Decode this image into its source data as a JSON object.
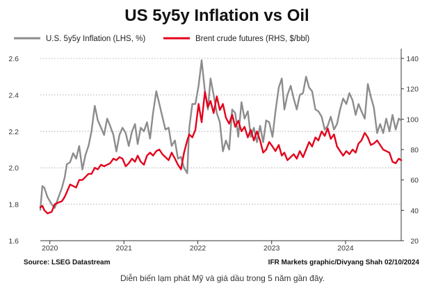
{
  "caption": "Diễn biến lạm phát Mỹ và giá dầu trong 5 năm gần đây.",
  "footer": {
    "source": "Source: LSEG Datastream",
    "credit": "IFR Markets graphic/Divyang Shah 02/10/2024"
  },
  "chart_data": {
    "type": "line",
    "title": "US 5y5y Inflation vs Oil",
    "legend_position": "top",
    "grid": "horizontal dotted",
    "x_axis": {
      "range": [
        "2019-11-15",
        "2024-10-02"
      ],
      "tick_labels": [
        "2020",
        "2021",
        "2022",
        "2023",
        "2024"
      ],
      "tick_dates": [
        "2020-01-01",
        "2021-01-01",
        "2022-01-01",
        "2023-01-01",
        "2024-01-01"
      ]
    },
    "y_left": {
      "range": [
        1.6,
        2.6
      ],
      "ticks": [
        1.6,
        1.8,
        2.0,
        2.2,
        2.4,
        2.6
      ],
      "tick_labels": [
        "1.6",
        "1.8",
        "2.0",
        "2.2",
        "2.4",
        "2.6"
      ]
    },
    "y_right": {
      "range": [
        20,
        140
      ],
      "ticks": [
        20,
        40,
        60,
        80,
        100,
        120,
        140
      ],
      "tick_labels": [
        "20",
        "40",
        "60",
        "80",
        "100",
        "120",
        "140"
      ]
    },
    "series": [
      {
        "name": "U.S. 5y5y Inflation (LHS, %)",
        "axis": "left",
        "color": "#8c8c8c",
        "points": [
          [
            "2019-11-15",
            1.77
          ],
          [
            "2019-11-25",
            1.9
          ],
          [
            "2019-12-05",
            1.89
          ],
          [
            "2019-12-20",
            1.84
          ],
          [
            "2020-01-10",
            1.8
          ],
          [
            "2020-01-25",
            1.78
          ],
          [
            "2020-02-10",
            1.83
          ],
          [
            "2020-03-01",
            1.89
          ],
          [
            "2020-03-15",
            1.95
          ],
          [
            "2020-03-25",
            2.02
          ],
          [
            "2020-04-10",
            2.03
          ],
          [
            "2020-04-25",
            2.08
          ],
          [
            "2020-05-10",
            2.05
          ],
          [
            "2020-05-25",
            2.12
          ],
          [
            "2020-06-10",
            1.99
          ],
          [
            "2020-06-25",
            2.07
          ],
          [
            "2020-07-10",
            2.12
          ],
          [
            "2020-07-25",
            2.2
          ],
          [
            "2020-08-10",
            2.34
          ],
          [
            "2020-08-25",
            2.26
          ],
          [
            "2020-09-10",
            2.22
          ],
          [
            "2020-09-25",
            2.18
          ],
          [
            "2020-10-10",
            2.27
          ],
          [
            "2020-10-25",
            2.23
          ],
          [
            "2020-11-10",
            2.18
          ],
          [
            "2020-11-25",
            2.09
          ],
          [
            "2020-12-10",
            2.18
          ],
          [
            "2020-12-25",
            2.22
          ],
          [
            "2021-01-10",
            2.19
          ],
          [
            "2021-01-25",
            2.12
          ],
          [
            "2021-02-10",
            2.2
          ],
          [
            "2021-02-25",
            2.24
          ],
          [
            "2021-03-10",
            2.13
          ],
          [
            "2021-03-25",
            2.22
          ],
          [
            "2021-04-10",
            2.2
          ],
          [
            "2021-04-25",
            2.25
          ],
          [
            "2021-05-10",
            2.16
          ],
          [
            "2021-05-25",
            2.3
          ],
          [
            "2021-06-10",
            2.42
          ],
          [
            "2021-06-25",
            2.35
          ],
          [
            "2021-07-10",
            2.28
          ],
          [
            "2021-07-25",
            2.21
          ],
          [
            "2021-08-10",
            2.22
          ],
          [
            "2021-08-25",
            2.12
          ],
          [
            "2021-09-10",
            2.15
          ],
          [
            "2021-09-25",
            2.05
          ],
          [
            "2021-10-10",
            2.06
          ],
          [
            "2021-10-25",
            2.0
          ],
          [
            "2021-11-10",
            1.97
          ],
          [
            "2021-11-20",
            2.22
          ],
          [
            "2021-12-05",
            2.35
          ],
          [
            "2021-12-20",
            2.35
          ],
          [
            "2022-01-05",
            2.45
          ],
          [
            "2022-01-20",
            2.59
          ],
          [
            "2022-02-05",
            2.42
          ],
          [
            "2022-02-20",
            2.32
          ],
          [
            "2022-03-05",
            2.49
          ],
          [
            "2022-03-20",
            2.4
          ],
          [
            "2022-04-05",
            2.3
          ],
          [
            "2022-04-20",
            2.25
          ],
          [
            "2022-05-05",
            2.09
          ],
          [
            "2022-05-20",
            2.15
          ],
          [
            "2022-06-05",
            2.1
          ],
          [
            "2022-06-20",
            2.32
          ],
          [
            "2022-07-05",
            2.3
          ],
          [
            "2022-07-20",
            2.17
          ],
          [
            "2022-08-05",
            2.36
          ],
          [
            "2022-08-20",
            2.27
          ],
          [
            "2022-09-05",
            2.31
          ],
          [
            "2022-09-20",
            2.17
          ],
          [
            "2022-10-05",
            2.22
          ],
          [
            "2022-10-20",
            2.14
          ],
          [
            "2022-11-05",
            2.23
          ],
          [
            "2022-11-20",
            2.14
          ],
          [
            "2022-12-05",
            2.26
          ],
          [
            "2022-12-20",
            2.25
          ],
          [
            "2023-01-05",
            2.17
          ],
          [
            "2023-01-20",
            2.31
          ],
          [
            "2023-02-05",
            2.44
          ],
          [
            "2023-02-20",
            2.49
          ],
          [
            "2023-03-05",
            2.32
          ],
          [
            "2023-03-20",
            2.4
          ],
          [
            "2023-04-05",
            2.45
          ],
          [
            "2023-04-20",
            2.38
          ],
          [
            "2023-05-05",
            2.32
          ],
          [
            "2023-05-20",
            2.4
          ],
          [
            "2023-06-05",
            2.41
          ],
          [
            "2023-06-20",
            2.5
          ],
          [
            "2023-07-05",
            2.44
          ],
          [
            "2023-07-20",
            2.42
          ],
          [
            "2023-08-05",
            2.32
          ],
          [
            "2023-08-20",
            2.31
          ],
          [
            "2023-09-05",
            2.28
          ],
          [
            "2023-09-20",
            2.21
          ],
          [
            "2023-10-05",
            2.23
          ],
          [
            "2023-10-20",
            2.28
          ],
          [
            "2023-11-05",
            2.21
          ],
          [
            "2023-11-20",
            2.24
          ],
          [
            "2023-12-05",
            2.32
          ],
          [
            "2023-12-20",
            2.38
          ],
          [
            "2024-01-05",
            2.35
          ],
          [
            "2024-01-20",
            2.41
          ],
          [
            "2024-02-05",
            2.37
          ],
          [
            "2024-02-20",
            2.29
          ],
          [
            "2024-03-05",
            2.35
          ],
          [
            "2024-03-20",
            2.31
          ],
          [
            "2024-04-05",
            2.27
          ],
          [
            "2024-04-20",
            2.46
          ],
          [
            "2024-05-05",
            2.39
          ],
          [
            "2024-05-20",
            2.33
          ],
          [
            "2024-06-05",
            2.19
          ],
          [
            "2024-06-20",
            2.24
          ],
          [
            "2024-07-05",
            2.19
          ],
          [
            "2024-07-20",
            2.27
          ],
          [
            "2024-08-05",
            2.2
          ],
          [
            "2024-08-20",
            2.29
          ],
          [
            "2024-09-05",
            2.21
          ],
          [
            "2024-09-20",
            2.27
          ],
          [
            "2024-10-02",
            2.26
          ]
        ]
      },
      {
        "name": "Brent crude futures (RHS, $/bbl)",
        "axis": "right",
        "color": "#e3001b",
        "points": [
          [
            "2019-11-15",
            42
          ],
          [
            "2019-11-25",
            43
          ],
          [
            "2019-12-05",
            40
          ],
          [
            "2019-12-20",
            38
          ],
          [
            "2020-01-10",
            39
          ],
          [
            "2020-01-25",
            44
          ],
          [
            "2020-02-10",
            45
          ],
          [
            "2020-03-01",
            46
          ],
          [
            "2020-03-15",
            49
          ],
          [
            "2020-03-25",
            52
          ],
          [
            "2020-04-10",
            57
          ],
          [
            "2020-04-25",
            56
          ],
          [
            "2020-05-10",
            55
          ],
          [
            "2020-05-25",
            60
          ],
          [
            "2020-06-10",
            60
          ],
          [
            "2020-06-25",
            62
          ],
          [
            "2020-07-10",
            64
          ],
          [
            "2020-07-25",
            64
          ],
          [
            "2020-08-10",
            68
          ],
          [
            "2020-08-25",
            67
          ],
          [
            "2020-09-10",
            70
          ],
          [
            "2020-09-25",
            69
          ],
          [
            "2020-10-10",
            70
          ],
          [
            "2020-10-25",
            71
          ],
          [
            "2020-11-10",
            74
          ],
          [
            "2020-11-25",
            73
          ],
          [
            "2020-12-10",
            75
          ],
          [
            "2020-12-25",
            74
          ],
          [
            "2021-01-10",
            69
          ],
          [
            "2021-01-25",
            71
          ],
          [
            "2021-02-10",
            74
          ],
          [
            "2021-02-25",
            72
          ],
          [
            "2021-03-10",
            76
          ],
          [
            "2021-03-25",
            72
          ],
          [
            "2021-04-10",
            70
          ],
          [
            "2021-04-25",
            76
          ],
          [
            "2021-05-10",
            78
          ],
          [
            "2021-05-25",
            76
          ],
          [
            "2021-06-10",
            79
          ],
          [
            "2021-06-25",
            80
          ],
          [
            "2021-07-10",
            77
          ],
          [
            "2021-07-25",
            75
          ],
          [
            "2021-08-10",
            73
          ],
          [
            "2021-08-25",
            78
          ],
          [
            "2021-09-10",
            74
          ],
          [
            "2021-09-25",
            70
          ],
          [
            "2021-10-10",
            67
          ],
          [
            "2021-10-25",
            78
          ],
          [
            "2021-11-10",
            86
          ],
          [
            "2021-11-20",
            90
          ],
          [
            "2021-12-05",
            88
          ],
          [
            "2021-12-20",
            93
          ],
          [
            "2022-01-05",
            110
          ],
          [
            "2022-01-20",
            98
          ],
          [
            "2022-02-05",
            118
          ],
          [
            "2022-02-20",
            108
          ],
          [
            "2022-03-05",
            112
          ],
          [
            "2022-03-20",
            104
          ],
          [
            "2022-04-05",
            115
          ],
          [
            "2022-04-20",
            106
          ],
          [
            "2022-05-05",
            110
          ],
          [
            "2022-05-20",
            101
          ],
          [
            "2022-06-05",
            97
          ],
          [
            "2022-06-20",
            103
          ],
          [
            "2022-07-05",
            95
          ],
          [
            "2022-07-20",
            99
          ],
          [
            "2022-08-05",
            92
          ],
          [
            "2022-08-20",
            95
          ],
          [
            "2022-09-05",
            88
          ],
          [
            "2022-09-20",
            93
          ],
          [
            "2022-10-05",
            86
          ],
          [
            "2022-10-20",
            92
          ],
          [
            "2022-11-05",
            86
          ],
          [
            "2022-11-20",
            78
          ],
          [
            "2022-12-05",
            80
          ],
          [
            "2022-12-20",
            85
          ],
          [
            "2023-01-05",
            82
          ],
          [
            "2023-01-20",
            79
          ],
          [
            "2023-02-05",
            83
          ],
          [
            "2023-02-20",
            76
          ],
          [
            "2023-03-05",
            78
          ],
          [
            "2023-03-20",
            73
          ],
          [
            "2023-04-05",
            75
          ],
          [
            "2023-04-20",
            77
          ],
          [
            "2023-05-05",
            74
          ],
          [
            "2023-05-20",
            79
          ],
          [
            "2023-06-05",
            75
          ],
          [
            "2023-06-20",
            80
          ],
          [
            "2023-07-05",
            85
          ],
          [
            "2023-07-20",
            82
          ],
          [
            "2023-08-05",
            88
          ],
          [
            "2023-08-20",
            86
          ],
          [
            "2023-09-05",
            92
          ],
          [
            "2023-09-20",
            89
          ],
          [
            "2023-10-05",
            94
          ],
          [
            "2023-10-20",
            87
          ],
          [
            "2023-11-05",
            90
          ],
          [
            "2023-11-20",
            82
          ],
          [
            "2023-12-05",
            79
          ],
          [
            "2023-12-20",
            76
          ],
          [
            "2024-01-05",
            79
          ],
          [
            "2024-01-20",
            77
          ],
          [
            "2024-02-05",
            80
          ],
          [
            "2024-02-20",
            78
          ],
          [
            "2024-03-05",
            84
          ],
          [
            "2024-03-20",
            86
          ],
          [
            "2024-04-05",
            91
          ],
          [
            "2024-04-20",
            88
          ],
          [
            "2024-05-05",
            83
          ],
          [
            "2024-05-20",
            84
          ],
          [
            "2024-06-05",
            86
          ],
          [
            "2024-06-20",
            83
          ],
          [
            "2024-07-05",
            80
          ],
          [
            "2024-07-20",
            79
          ],
          [
            "2024-08-05",
            78
          ],
          [
            "2024-08-20",
            72
          ],
          [
            "2024-09-05",
            71
          ],
          [
            "2024-09-20",
            74
          ],
          [
            "2024-10-02",
            73
          ]
        ]
      }
    ]
  }
}
